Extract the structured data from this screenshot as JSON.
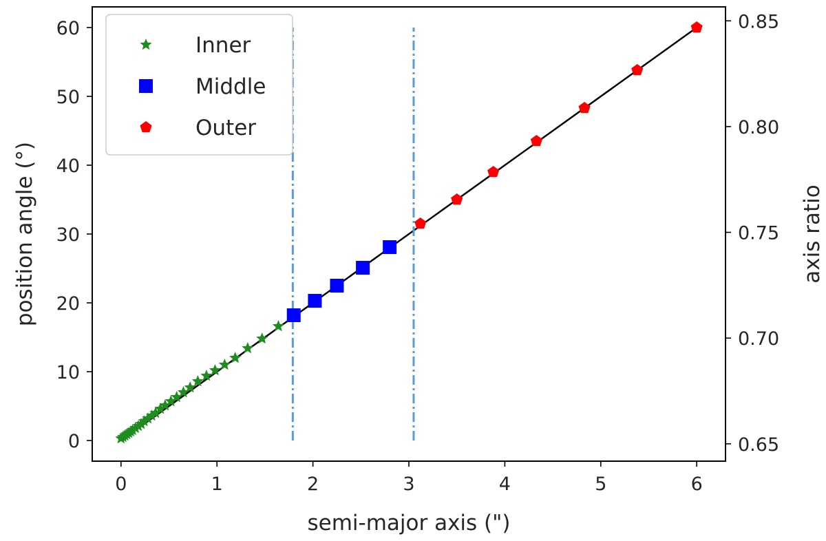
{
  "chart_data": {
    "type": "scatter",
    "title": "",
    "xlabel": "semi-major axis (\")",
    "ylabel": "position angle (°)",
    "y2label": "axis ratio",
    "xlim": [
      -0.3,
      6.3
    ],
    "ylim": [
      -3,
      63
    ],
    "y2lim": [
      0.6418,
      0.8566
    ],
    "xticks": [
      "0",
      "1",
      "2",
      "3",
      "4",
      "5",
      "6"
    ],
    "yticks": [
      "0",
      "10",
      "20",
      "30",
      "40",
      "50",
      "60"
    ],
    "y2ticks": [
      "0.65",
      "0.70",
      "0.75",
      "0.80",
      "0.85"
    ],
    "legend_position": "top-left",
    "grid": false,
    "vlines": [
      {
        "x": 1.79,
        "ymin": 0,
        "ymax": 60,
        "style": "dashdot",
        "color": "#5b9bd5"
      },
      {
        "x": 3.05,
        "ymin": 0,
        "ymax": 60,
        "style": "dashdot",
        "color": "#5b9bd5"
      }
    ],
    "fit_line": {
      "x": [
        0,
        6
      ],
      "y": [
        0,
        60
      ],
      "color": "#000000"
    },
    "series": [
      {
        "name": "Inner",
        "marker": "star",
        "color": "#1e8c1e",
        "x": [
          0.0,
          0.02,
          0.04,
          0.06,
          0.08,
          0.1,
          0.12,
          0.15,
          0.18,
          0.21,
          0.24,
          0.28,
          0.32,
          0.36,
          0.41,
          0.46,
          0.52,
          0.58,
          0.65,
          0.72,
          0.8,
          0.89,
          0.98,
          1.08,
          1.19,
          1.32,
          1.47,
          1.64
        ],
        "y": [
          0.3,
          0.5,
          0.7,
          0.9,
          1.1,
          1.3,
          1.5,
          1.8,
          2.1,
          2.4,
          2.8,
          3.2,
          3.6,
          4.0,
          4.6,
          5.1,
          5.7,
          6.3,
          7.0,
          7.7,
          8.6,
          9.4,
          10.2,
          11.0,
          12.0,
          13.4,
          14.8,
          16.6
        ]
      },
      {
        "name": "Middle",
        "marker": "square",
        "color": "#0000ff",
        "x": [
          1.8,
          2.02,
          2.25,
          2.52,
          2.8
        ],
        "y": [
          18.2,
          20.3,
          22.5,
          25.1,
          28.1
        ]
      },
      {
        "name": "Outer",
        "marker": "pentagon",
        "color": "#ff0000",
        "x": [
          3.12,
          3.5,
          3.88,
          4.33,
          4.83,
          5.38,
          6.0
        ],
        "y": [
          31.5,
          35.0,
          39.0,
          43.5,
          48.3,
          53.8,
          60.0
        ]
      }
    ]
  }
}
